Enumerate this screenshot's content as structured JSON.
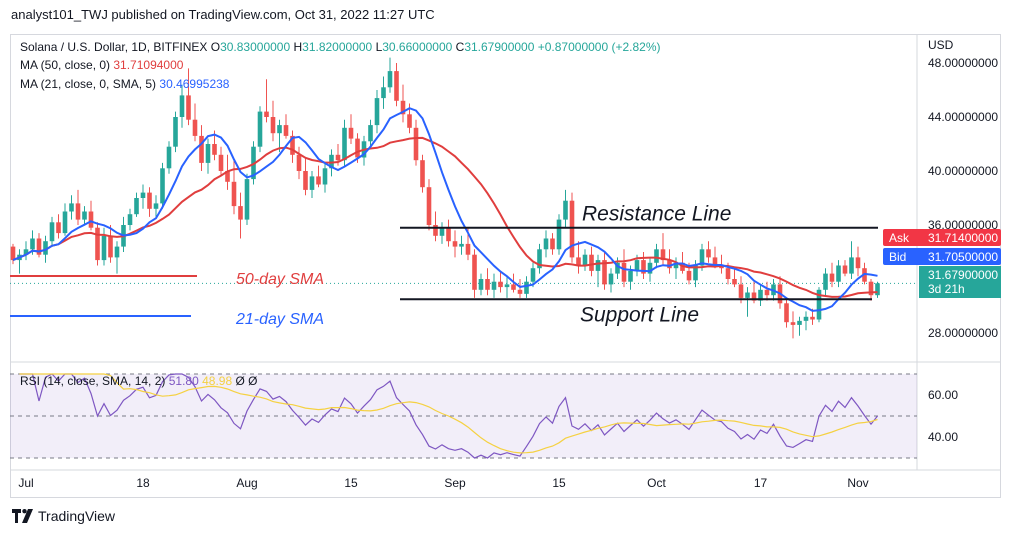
{
  "header": {
    "text": "analyst101_TWJ published on TradingView.com, Oct 31, 2022 11:27 UTC"
  },
  "footer": {
    "brand": "TradingView"
  },
  "legend": {
    "symbol": "Solana / U.S. Dollar, 1D, BITFINEX",
    "o_label": "O",
    "o": "30.83000000",
    "h_label": "H",
    "h": "31.82000000",
    "l_label": "L",
    "l": "30.66000000",
    "c_label": "C",
    "c": "31.67900000",
    "change": "+0.87000000 (+2.82%)",
    "ma50_label": "MA (50, close, 0)",
    "ma50_value": "31.71094000",
    "ma21_label": "MA (21, close, 0, SMA, 5)",
    "ma21_value": "30.46995238",
    "rsi_label": "RSI (14, close, SMA, 14, 2)",
    "rsi_value": "51.80",
    "rsi_ma_value": "48.98",
    "rsi_icon1": "Ø",
    "rsi_icon2": "Ø"
  },
  "axis": {
    "currency": "USD"
  },
  "price_tags": {
    "ask_label": "Ask",
    "ask": "31.71400000",
    "bid_label": "Bid",
    "bid": "31.70500000",
    "last": "31.67900000",
    "countdown": "3d 21h"
  },
  "annotations": {
    "resistance": "Resistance Line",
    "support": "Support Line",
    "sma50": "50-day SMA",
    "sma21": "21-day SMA"
  },
  "colors": {
    "up": "#26a69a",
    "down": "#ef5350",
    "ma50": "#e03e3e",
    "ma21": "#2962ff",
    "rsi": "#7e57c2",
    "rsi_ma": "#f5d142",
    "ask": "#f23645",
    "bid": "#2962ff"
  },
  "chart_data": {
    "type": "candlestick",
    "y_ticks": [
      48,
      44,
      40,
      36,
      28
    ],
    "x_ticks": [
      "Jul",
      "18",
      "Aug",
      "15",
      "Sep",
      "15",
      "Oct",
      "17",
      "Nov"
    ],
    "ylim": [
      26,
      50
    ],
    "rsi_ticks": [
      60,
      40
    ],
    "resistance_level": 35.8,
    "support_level": 30.5,
    "candles": [
      [
        34.4,
        34.6,
        33.1,
        33.4
      ],
      [
        33.4,
        34.2,
        32.4,
        33.8
      ],
      [
        33.8,
        34.8,
        33.4,
        34.2
      ],
      [
        34.2,
        35.6,
        33.8,
        35.0
      ],
      [
        35.0,
        35.4,
        33.6,
        33.8
      ],
      [
        33.8,
        35.2,
        33.2,
        34.8
      ],
      [
        34.8,
        36.6,
        34.4,
        36.2
      ],
      [
        36.2,
        36.8,
        35.0,
        35.4
      ],
      [
        35.4,
        37.6,
        35.2,
        37.0
      ],
      [
        37.0,
        38.2,
        36.4,
        37.6
      ],
      [
        37.6,
        38.6,
        36.0,
        36.4
      ],
      [
        36.4,
        37.4,
        36.0,
        37.0
      ],
      [
        37.0,
        37.8,
        35.6,
        35.8
      ],
      [
        35.8,
        36.2,
        33.0,
        33.4
      ],
      [
        33.4,
        35.8,
        33.0,
        35.2
      ],
      [
        35.2,
        36.0,
        33.2,
        33.6
      ],
      [
        33.6,
        34.8,
        32.4,
        34.4
      ],
      [
        34.4,
        36.6,
        34.0,
        36.0
      ],
      [
        36.0,
        37.2,
        35.6,
        36.8
      ],
      [
        36.8,
        38.4,
        36.6,
        38.0
      ],
      [
        38.0,
        39.0,
        37.2,
        38.4
      ],
      [
        38.4,
        38.8,
        36.6,
        37.2
      ],
      [
        37.2,
        38.2,
        36.6,
        37.6
      ],
      [
        37.6,
        40.6,
        37.2,
        40.2
      ],
      [
        40.2,
        42.2,
        39.8,
        41.8
      ],
      [
        41.8,
        44.4,
        41.4,
        44.0
      ],
      [
        44.0,
        46.4,
        43.2,
        45.6
      ],
      [
        45.6,
        47.6,
        43.4,
        43.8
      ],
      [
        43.8,
        45.0,
        42.2,
        42.6
      ],
      [
        42.6,
        43.4,
        40.0,
        40.6
      ],
      [
        40.6,
        42.4,
        39.8,
        42.0
      ],
      [
        42.0,
        43.0,
        40.8,
        41.2
      ],
      [
        41.2,
        41.8,
        39.6,
        40.0
      ],
      [
        40.0,
        41.2,
        38.6,
        39.2
      ],
      [
        39.2,
        40.8,
        36.8,
        37.4
      ],
      [
        37.4,
        38.4,
        35.0,
        36.4
      ],
      [
        36.4,
        39.8,
        36.0,
        39.4
      ],
      [
        39.4,
        42.2,
        39.0,
        41.8
      ],
      [
        41.8,
        44.8,
        41.4,
        44.4
      ],
      [
        44.4,
        46.8,
        43.6,
        44.0
      ],
      [
        44.0,
        45.2,
        42.2,
        42.8
      ],
      [
        42.8,
        43.8,
        41.4,
        43.4
      ],
      [
        43.4,
        44.2,
        42.4,
        42.6
      ],
      [
        42.6,
        43.0,
        40.6,
        41.2
      ],
      [
        41.2,
        41.8,
        39.4,
        40.0
      ],
      [
        40.0,
        41.0,
        38.2,
        38.6
      ],
      [
        38.6,
        40.0,
        38.0,
        39.6
      ],
      [
        39.6,
        40.4,
        38.8,
        39.0
      ],
      [
        39.0,
        40.6,
        38.4,
        40.2
      ],
      [
        40.2,
        41.6,
        39.6,
        41.2
      ],
      [
        41.2,
        42.0,
        40.4,
        40.8
      ],
      [
        40.8,
        43.8,
        40.4,
        43.2
      ],
      [
        43.2,
        44.2,
        42.0,
        42.4
      ],
      [
        42.4,
        42.8,
        40.6,
        41.0
      ],
      [
        41.0,
        42.6,
        40.4,
        42.2
      ],
      [
        42.2,
        43.8,
        41.6,
        43.4
      ],
      [
        43.4,
        46.0,
        42.8,
        45.4
      ],
      [
        45.4,
        47.0,
        44.6,
        46.2
      ],
      [
        46.2,
        48.4,
        45.8,
        47.4
      ],
      [
        47.4,
        48.0,
        44.8,
        45.2
      ],
      [
        45.2,
        46.4,
        43.6,
        44.2
      ],
      [
        44.2,
        45.0,
        42.8,
        43.2
      ],
      [
        43.2,
        43.8,
        40.4,
        40.8
      ],
      [
        40.8,
        41.2,
        38.4,
        38.8
      ],
      [
        38.8,
        39.4,
        35.6,
        36.0
      ],
      [
        36.0,
        37.0,
        34.8,
        35.2
      ],
      [
        35.2,
        36.2,
        34.6,
        35.8
      ],
      [
        35.8,
        36.4,
        34.4,
        34.8
      ],
      [
        34.8,
        35.6,
        33.6,
        34.4
      ],
      [
        34.4,
        35.2,
        33.8,
        34.6
      ],
      [
        34.6,
        35.8,
        33.4,
        33.8
      ],
      [
        33.8,
        34.2,
        30.6,
        31.2
      ],
      [
        31.2,
        32.4,
        30.8,
        32.0
      ],
      [
        32.0,
        32.8,
        30.8,
        31.2
      ],
      [
        31.2,
        32.4,
        30.6,
        31.8
      ],
      [
        31.8,
        32.6,
        31.0,
        31.4
      ],
      [
        31.4,
        32.2,
        30.6,
        31.6
      ],
      [
        31.6,
        32.4,
        31.0,
        31.2
      ],
      [
        31.2,
        32.0,
        30.6,
        30.9
      ],
      [
        30.9,
        32.2,
        30.6,
        31.8
      ],
      [
        31.8,
        33.2,
        31.4,
        32.8
      ],
      [
        32.8,
        34.6,
        32.4,
        34.2
      ],
      [
        34.2,
        35.6,
        33.6,
        35.0
      ],
      [
        35.0,
        35.4,
        33.8,
        34.2
      ],
      [
        34.2,
        36.8,
        33.8,
        36.4
      ],
      [
        36.4,
        38.6,
        35.8,
        37.8
      ],
      [
        37.8,
        38.4,
        33.2,
        33.6
      ],
      [
        33.6,
        34.8,
        32.4,
        33.0
      ],
      [
        33.0,
        34.2,
        32.6,
        33.8
      ],
      [
        33.8,
        34.4,
        32.2,
        32.6
      ],
      [
        32.6,
        33.8,
        31.4,
        33.4
      ],
      [
        33.4,
        34.0,
        31.2,
        31.6
      ],
      [
        31.6,
        32.8,
        31.0,
        32.4
      ],
      [
        32.4,
        33.6,
        32.0,
        33.2
      ],
      [
        33.2,
        34.2,
        31.4,
        31.8
      ],
      [
        31.8,
        33.0,
        31.2,
        32.6
      ],
      [
        32.6,
        33.8,
        32.2,
        33.4
      ],
      [
        33.4,
        34.0,
        32.0,
        32.4
      ],
      [
        32.4,
        33.6,
        31.8,
        33.2
      ],
      [
        33.2,
        34.6,
        32.8,
        34.2
      ],
      [
        34.2,
        35.4,
        33.0,
        33.4
      ],
      [
        33.4,
        34.2,
        32.4,
        32.8
      ],
      [
        32.8,
        33.6,
        32.0,
        33.2
      ],
      [
        33.2,
        34.0,
        32.4,
        32.6
      ],
      [
        32.6,
        33.2,
        31.6,
        31.9
      ],
      [
        31.9,
        33.4,
        31.4,
        33.0
      ],
      [
        33.0,
        34.6,
        32.6,
        34.2
      ],
      [
        34.2,
        34.8,
        33.2,
        33.6
      ],
      [
        33.6,
        34.4,
        32.8,
        33.0
      ],
      [
        33.0,
        33.8,
        32.4,
        32.8
      ],
      [
        32.8,
        33.2,
        31.6,
        32.0
      ],
      [
        32.0,
        32.8,
        31.4,
        31.6
      ],
      [
        31.6,
        32.2,
        30.2,
        30.6
      ],
      [
        30.6,
        31.4,
        29.2,
        31.0
      ],
      [
        31.0,
        31.8,
        30.2,
        30.4
      ],
      [
        30.4,
        31.6,
        30.0,
        31.2
      ],
      [
        31.2,
        31.8,
        30.4,
        30.8
      ],
      [
        30.8,
        32.0,
        30.4,
        31.6
      ],
      [
        31.6,
        32.2,
        29.8,
        30.2
      ],
      [
        30.2,
        30.6,
        28.4,
        28.8
      ],
      [
        28.8,
        29.6,
        27.6,
        28.6
      ],
      [
        28.6,
        29.2,
        27.8,
        28.9
      ],
      [
        28.9,
        29.6,
        28.2,
        29.2
      ],
      [
        29.2,
        29.8,
        28.6,
        29.0
      ],
      [
        29.0,
        31.4,
        28.8,
        31.2
      ],
      [
        31.2,
        32.8,
        30.8,
        32.4
      ],
      [
        32.4,
        33.2,
        31.4,
        31.8
      ],
      [
        31.8,
        33.4,
        31.4,
        33.0
      ],
      [
        33.0,
        33.4,
        32.2,
        32.4
      ],
      [
        32.4,
        34.8,
        32.0,
        33.6
      ],
      [
        33.6,
        34.4,
        32.2,
        32.8
      ],
      [
        32.8,
        33.2,
        31.6,
        31.8
      ],
      [
        31.8,
        32.0,
        30.4,
        30.8
      ],
      [
        30.8,
        31.8,
        30.6,
        31.679
      ]
    ]
  }
}
